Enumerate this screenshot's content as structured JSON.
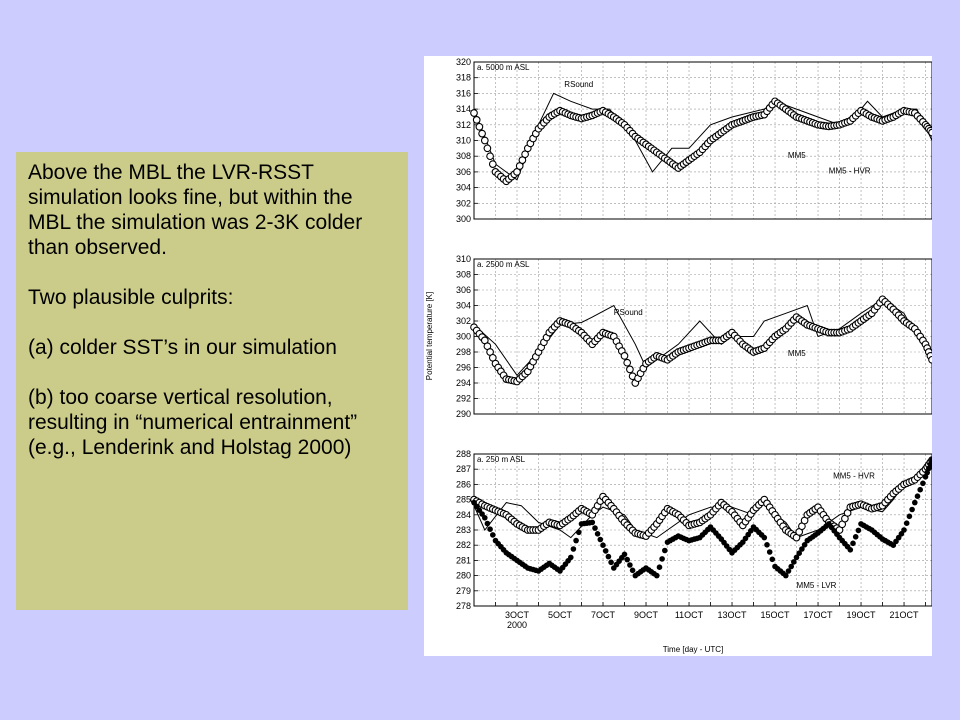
{
  "slide": {
    "background": "#ccccff",
    "text_box_color": "#cccc8a",
    "paragraphs": [
      "Above the MBL the LVR-RSST simulation looks fine, but within the MBL the simulation was 2-3K colder than observed.",
      "Two plausible culprits:",
      "(a) colder SST’s in our simulation",
      "(b) too coarse vertical resolution, resulting in “numerical entrainment” (e.g., Lenderink and Holstag 2000)"
    ]
  },
  "chart_data": [
    {
      "type": "line",
      "title": "a. 5000 m ASL",
      "ylim": [
        300,
        320
      ],
      "yticks": [
        300,
        302,
        304,
        306,
        308,
        310,
        312,
        314,
        316,
        318,
        320
      ],
      "xlim": [
        1.0,
        22.3
      ],
      "grid": true,
      "annotations": [
        {
          "text": "RSound",
          "x": 5.2,
          "y": 316.8
        },
        {
          "text": "MM5",
          "x": 15.6,
          "y": 307.8
        },
        {
          "text": "MM5 - HVR",
          "x": 17.5,
          "y": 305.8
        }
      ],
      "series": [
        {
          "name": "RSound",
          "style": "thin-line",
          "x": [
            1.0,
            2.0,
            3.0,
            4.0,
            4.7,
            5.5,
            6.5,
            7.3,
            8.5,
            9.3,
            10.2,
            11.0,
            12.0,
            13.0,
            14.5,
            15.0,
            16.0,
            17.0,
            18.0,
            19.0,
            19.3,
            20.0,
            21.0,
            21.6,
            22.3
          ],
          "y": [
            314,
            307,
            305,
            312,
            316,
            315,
            314,
            314,
            310,
            306,
            309,
            309,
            312,
            313,
            314,
            315,
            314,
            313,
            312,
            314,
            315,
            313,
            314,
            314,
            310
          ]
        },
        {
          "name": "MM5 - HVR",
          "style": "open-circles",
          "x": [
            1.0,
            1.5,
            2.0,
            2.5,
            3.0,
            3.5,
            4.0,
            4.5,
            5.0,
            5.5,
            6.0,
            6.5,
            7.0,
            7.5,
            8.0,
            8.5,
            9.0,
            9.5,
            10.0,
            10.5,
            11.0,
            11.5,
            12.0,
            12.5,
            13.0,
            13.5,
            14.0,
            14.5,
            15.0,
            15.5,
            16.0,
            16.5,
            17.0,
            17.5,
            18.0,
            18.5,
            19.0,
            19.5,
            20.0,
            20.5,
            21.0,
            21.5,
            22.0,
            22.3
          ],
          "y": [
            313.5,
            310,
            306,
            304.8,
            306,
            309,
            311.5,
            313,
            313.8,
            313.2,
            312.8,
            313.2,
            313.8,
            313,
            312,
            310.5,
            309.5,
            308.5,
            307.5,
            306.5,
            307.5,
            308.5,
            310,
            311,
            312,
            312.5,
            313,
            313.3,
            315,
            314,
            313,
            312.5,
            312,
            311.8,
            312,
            312.5,
            313.8,
            313,
            312.5,
            313,
            313.8,
            313.5,
            312,
            311
          ]
        }
      ]
    },
    {
      "type": "line",
      "title": "a. 2500 m ASL",
      "ylim": [
        290,
        310
      ],
      "yticks": [
        290,
        292,
        294,
        296,
        298,
        300,
        302,
        304,
        306,
        308,
        310
      ],
      "xlim": [
        1.0,
        22.3
      ],
      "grid": true,
      "annotations": [
        {
          "text": "RSound",
          "x": 7.5,
          "y": 302.8
        },
        {
          "text": "MM5",
          "x": 15.6,
          "y": 297.5
        }
      ],
      "series": [
        {
          "name": "RSound",
          "style": "thin-line",
          "x": [
            1.0,
            2.0,
            3.0,
            4.0,
            5.0,
            6.0,
            6.5,
            7.5,
            8.5,
            9.0,
            9.5,
            10.5,
            11.5,
            12.5,
            13.0,
            14.0,
            14.5,
            15.5,
            16.5,
            17.0,
            18.0,
            19.0,
            20.0,
            21.0,
            21.6,
            22.3
          ],
          "y": [
            301.5,
            299,
            295,
            298,
            301.5,
            301.8,
            302.5,
            304,
            299,
            296,
            297,
            299,
            302,
            299,
            300,
            300,
            302,
            303,
            304,
            300,
            301,
            303,
            304.8,
            303,
            300,
            297
          ]
        },
        {
          "name": "MM5",
          "style": "open-circles",
          "x": [
            1.0,
            1.5,
            2.0,
            2.5,
            3.0,
            3.5,
            4.0,
            4.5,
            5.0,
            5.5,
            6.0,
            6.5,
            7.0,
            7.5,
            8.0,
            8.5,
            9.0,
            9.5,
            10.0,
            10.5,
            11.0,
            11.5,
            12.0,
            12.5,
            13.0,
            13.5,
            14.0,
            14.5,
            15.0,
            15.5,
            16.0,
            16.5,
            17.0,
            17.5,
            18.0,
            18.5,
            19.0,
            19.5,
            20.0,
            20.5,
            21.0,
            21.5,
            22.0,
            22.3
          ],
          "y": [
            301.2,
            299.5,
            296.5,
            294.5,
            294.2,
            295.5,
            298,
            300.5,
            302,
            301.5,
            300.5,
            299,
            300.5,
            300,
            297.5,
            294,
            296.5,
            297.5,
            297,
            298,
            298.5,
            299,
            299.5,
            299.5,
            300.5,
            299,
            298,
            298.5,
            300,
            301,
            302.5,
            301.5,
            301,
            300.5,
            300.5,
            301,
            302,
            303,
            304.8,
            303.5,
            302,
            301,
            299,
            297
          ]
        }
      ]
    },
    {
      "type": "line",
      "title": "a. 250 m ASL",
      "ylim": [
        278,
        288
      ],
      "yticks": [
        278,
        279,
        280,
        281,
        282,
        283,
        284,
        285,
        286,
        287,
        288
      ],
      "xlim": [
        1.0,
        22.3
      ],
      "xticks": [
        3,
        5,
        7,
        9,
        11,
        13,
        15,
        17,
        19,
        21
      ],
      "xticklabels": [
        "3OCT",
        "5OCT",
        "7OCT",
        "9OCT",
        "11OCT",
        "13OCT",
        "15OCT",
        "17OCT",
        "19OCT",
        "21OCT"
      ],
      "xsublabel": "2000",
      "xlabel": "Time [day - UTC]",
      "ylabel": "Potential temperature [K]",
      "grid": true,
      "annotations": [
        {
          "text": "MM5 - HVR",
          "x": 17.7,
          "y": 286.4
        },
        {
          "text": "MM5 - LVR",
          "x": 16.0,
          "y": 279.2
        }
      ],
      "series": [
        {
          "name": "RSound",
          "style": "thin-line",
          "x": [
            1.0,
            1.5,
            2.5,
            3.2,
            4.0,
            5.0,
            5.5,
            6.5,
            7.0,
            8.0,
            8.5,
            9.5,
            10.0,
            11.0,
            12.0,
            13.0,
            14.0,
            14.5,
            15.0,
            15.5,
            16.0,
            17.0,
            18.0,
            19.0,
            20.0,
            20.5,
            21.0,
            21.6,
            22.3
          ],
          "y": [
            284.6,
            283,
            284.8,
            284.6,
            283.5,
            283,
            282.5,
            284,
            284.5,
            284,
            283,
            282.5,
            283,
            284,
            284.5,
            284.5,
            284,
            284.8,
            284,
            283.5,
            282.5,
            283,
            284,
            284.5,
            284.2,
            285,
            286,
            286.5,
            287.5
          ]
        },
        {
          "name": "MM5 - HVR",
          "style": "open-circles",
          "x": [
            1.0,
            1.5,
            2.0,
            2.5,
            3.0,
            3.5,
            4.0,
            4.5,
            5.0,
            5.5,
            6.0,
            6.5,
            7.0,
            7.5,
            8.0,
            8.5,
            9.0,
            9.5,
            10.0,
            10.5,
            11.0,
            11.5,
            12.0,
            12.5,
            13.0,
            13.5,
            14.0,
            14.5,
            15.0,
            15.5,
            16.0,
            16.5,
            17.0,
            17.5,
            18.0,
            18.5,
            19.0,
            19.5,
            20.0,
            20.5,
            21.0,
            21.5,
            22.0,
            22.3
          ],
          "y": [
            285,
            284.6,
            284.3,
            284,
            283.4,
            283,
            283,
            283.5,
            283.3,
            283.8,
            284.4,
            284,
            285.2,
            284.4,
            283.5,
            282.8,
            282.6,
            283.4,
            284.4,
            284,
            283.3,
            283.5,
            284,
            284.8,
            284.2,
            283.3,
            284.3,
            285,
            284,
            283,
            282.5,
            284,
            284.5,
            283.5,
            283,
            284.5,
            284.7,
            284.4,
            284.6,
            285.4,
            286,
            286.3,
            287,
            287.6
          ]
        },
        {
          "name": "MM5 - LVR",
          "style": "filled-dots",
          "x": [
            1.0,
            1.5,
            2.0,
            2.5,
            3.0,
            3.5,
            4.0,
            4.5,
            5.0,
            5.5,
            6.0,
            6.5,
            7.0,
            7.5,
            8.0,
            8.5,
            9.0,
            9.5,
            10.0,
            10.5,
            11.0,
            11.5,
            12.0,
            12.5,
            13.0,
            13.5,
            14.0,
            14.5,
            15.0,
            15.5,
            16.0,
            16.5,
            17.0,
            17.5,
            18.0,
            18.5,
            19.0,
            19.5,
            20.0,
            20.5,
            21.0,
            21.5,
            22.0,
            22.3
          ],
          "y": [
            284.8,
            283.8,
            282.3,
            281.5,
            281,
            280.5,
            280.3,
            280.8,
            280.3,
            281.2,
            283.4,
            283.5,
            282,
            280.5,
            281.4,
            280,
            280.5,
            280,
            282.2,
            282.6,
            282.3,
            282.5,
            283.2,
            282.4,
            281.5,
            282.2,
            283.2,
            282.5,
            280.6,
            280,
            281.2,
            282.3,
            282.8,
            283.4,
            282.5,
            281.7,
            283.4,
            283,
            282.4,
            282,
            283,
            284.8,
            286.5,
            287.6
          ]
        }
      ]
    }
  ]
}
